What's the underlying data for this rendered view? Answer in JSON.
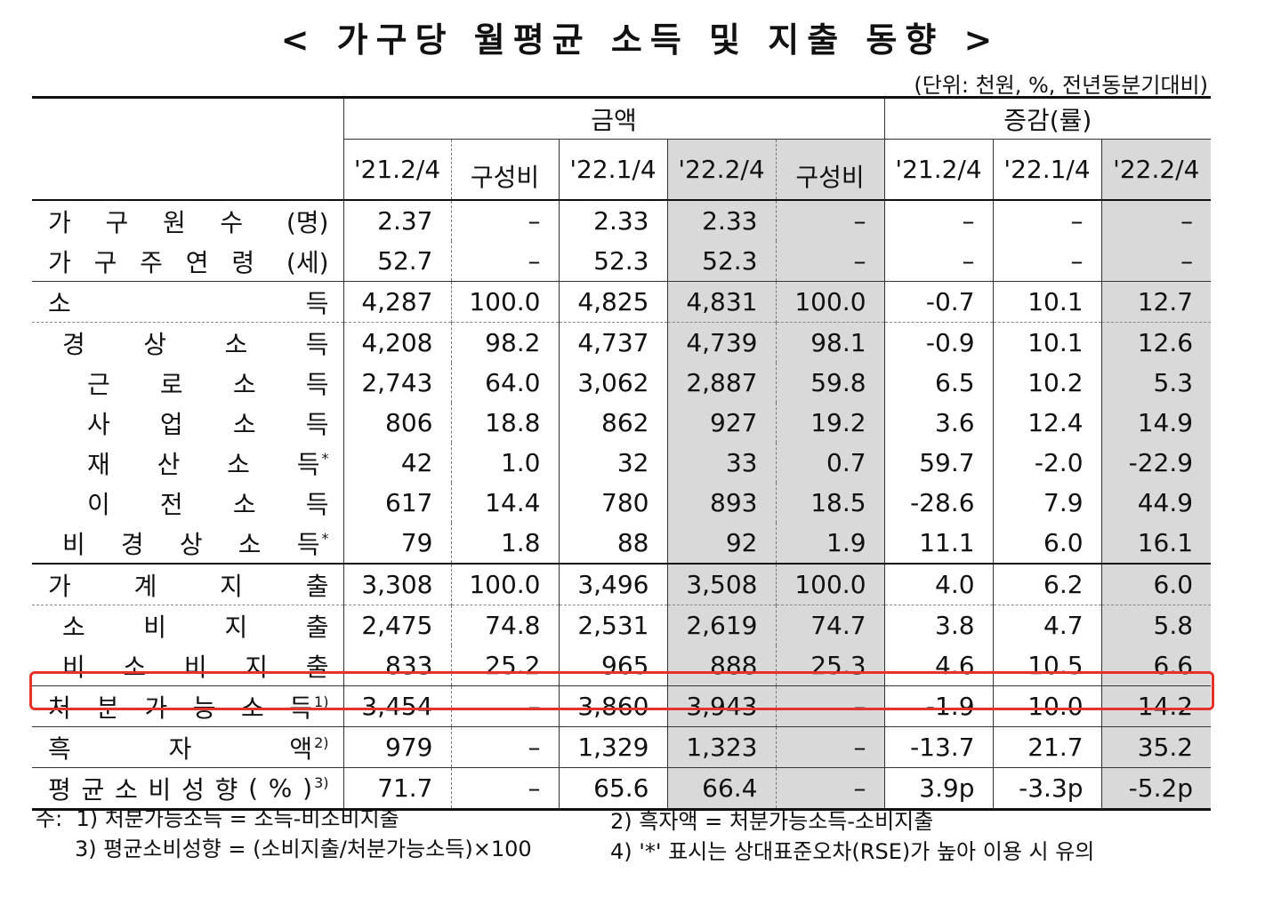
{
  "title": "< 가구당 월평균 소득 및 지출 동향 >",
  "unit": "(단위: 천원, %, 전년동분기대비)",
  "headers": {
    "amount_group": "금액",
    "change_group": "증감(률)",
    "cols": [
      "'21.2/4",
      "구성비",
      "'22.1/4",
      "'22.2/4",
      "구성비",
      "'21.2/4",
      "'22.1/4",
      "'22.2/4"
    ]
  },
  "rows": [
    {
      "chars": [
        "가",
        "구",
        "원",
        "수"
      ],
      "unit": "(명)",
      "sup": "",
      "indent": 0,
      "values": [
        "2.37",
        "–",
        "2.33",
        "2.33",
        "–",
        "–",
        "–",
        "–"
      ]
    },
    {
      "chars": [
        "가",
        "구",
        "주",
        "연",
        "령"
      ],
      "unit": "(세)",
      "sup": "",
      "indent": 0,
      "values": [
        "52.7",
        "–",
        "52.3",
        "52.3",
        "–",
        "–",
        "–",
        "–"
      ]
    },
    {
      "chars": [
        "소",
        "득"
      ],
      "unit": "",
      "sup": "",
      "indent": 0,
      "values": [
        "4,287",
        "100.0",
        "4,825",
        "4,831",
        "100.0",
        "-0.7",
        "10.1",
        "12.7"
      ]
    },
    {
      "chars": [
        "경",
        "상",
        "소",
        "득"
      ],
      "unit": "",
      "sup": "",
      "indent": 1,
      "values": [
        "4,208",
        "98.2",
        "4,737",
        "4,739",
        "98.1",
        "-0.9",
        "10.1",
        "12.6"
      ]
    },
    {
      "chars": [
        "근",
        "로",
        "소",
        "득"
      ],
      "unit": "",
      "sup": "",
      "indent": 2,
      "values": [
        "2,743",
        "64.0",
        "3,062",
        "2,887",
        "59.8",
        "6.5",
        "10.2",
        "5.3"
      ]
    },
    {
      "chars": [
        "사",
        "업",
        "소",
        "득"
      ],
      "unit": "",
      "sup": "",
      "indent": 2,
      "values": [
        "806",
        "18.8",
        "862",
        "927",
        "19.2",
        "3.6",
        "12.4",
        "14.9"
      ]
    },
    {
      "chars": [
        "재",
        "산",
        "소",
        "득"
      ],
      "unit": "",
      "sup": "*",
      "indent": 2,
      "values": [
        "42",
        "1.0",
        "32",
        "33",
        "0.7",
        "59.7",
        "-2.0",
        "-22.9"
      ]
    },
    {
      "chars": [
        "이",
        "전",
        "소",
        "득"
      ],
      "unit": "",
      "sup": "",
      "indent": 2,
      "values": [
        "617",
        "14.4",
        "780",
        "893",
        "18.5",
        "-28.6",
        "7.9",
        "44.9"
      ]
    },
    {
      "chars": [
        "비",
        "경",
        "상",
        "소",
        "득"
      ],
      "unit": "",
      "sup": "*",
      "indent": 1,
      "values": [
        "79",
        "1.8",
        "88",
        "92",
        "1.9",
        "11.1",
        "6.0",
        "16.1"
      ]
    },
    {
      "chars": [
        "가",
        "계",
        "지",
        "출"
      ],
      "unit": "",
      "sup": "",
      "indent": 0,
      "values": [
        "3,308",
        "100.0",
        "3,496",
        "3,508",
        "100.0",
        "4.0",
        "6.2",
        "6.0"
      ]
    },
    {
      "chars": [
        "소",
        "비",
        "지",
        "출"
      ],
      "unit": "",
      "sup": "",
      "indent": 1,
      "values": [
        "2,475",
        "74.8",
        "2,531",
        "2,619",
        "74.7",
        "3.8",
        "4.7",
        "5.8"
      ]
    },
    {
      "chars": [
        "비",
        "소",
        "비",
        "지",
        "출"
      ],
      "unit": "",
      "sup": "",
      "indent": 1,
      "values": [
        "833",
        "25.2",
        "965",
        "888",
        "25.3",
        "4.6",
        "10.5",
        "6.6"
      ]
    },
    {
      "chars": [
        "처",
        "분",
        "가",
        "능",
        "소",
        "득"
      ],
      "unit": "",
      "sup": "1)",
      "indent": 0,
      "values": [
        "3,454",
        "–",
        "3,860",
        "3,943",
        "–",
        "-1.9",
        "10.0",
        "14.2"
      ]
    },
    {
      "chars": [
        "흑",
        "자",
        "액"
      ],
      "unit": "",
      "sup": "2)",
      "indent": 0,
      "values": [
        "979",
        "–",
        "1,329",
        "1,323",
        "–",
        "-13.7",
        "21.7",
        "35.2"
      ]
    },
    {
      "chars": [
        "평",
        "균",
        "소",
        "비",
        "성",
        "향",
        "(",
        "%",
        ")"
      ],
      "unit": "",
      "sup": "3)",
      "indent": 0,
      "values": [
        "71.7",
        "–",
        "65.6",
        "66.4",
        "–",
        "3.9p",
        "-3.3p",
        "-5.2p"
      ]
    }
  ],
  "notes": {
    "prefix": "주:",
    "n1": "1)  처분가능소득 = 소득-비소비지출",
    "n2": "2)  흑자액 = 처분가능소득-소비지출",
    "n3": "3)  평균소비성향 = (소비지출/처분가능소득)×100",
    "n4": "4)  '*' 표시는 상대표준오차(RSE)가 높아 이용 시 유의"
  },
  "highlight_color": "#e5322a"
}
